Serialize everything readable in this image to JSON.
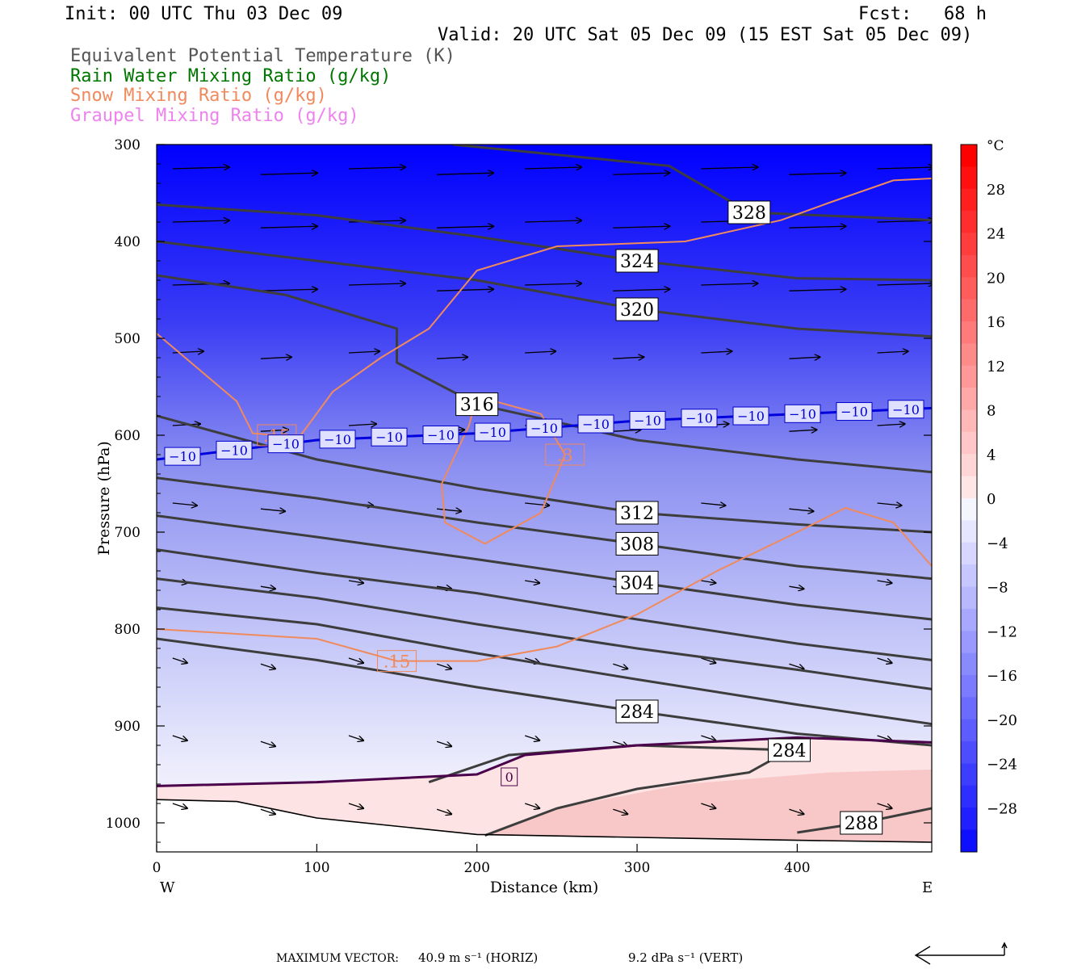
{
  "header": {
    "init": "Init: 00 UTC Thu 03 Dec 09",
    "fcst": "Fcst:   68 h",
    "valid": "Valid: 20 UTC Sat 05 Dec 09 (15 EST Sat 05 Dec 09)"
  },
  "legend": [
    {
      "text": "Equivalent Potential Temperature (K)",
      "color": "#555555"
    },
    {
      "text": "Rain Water Mixing Ratio (g/kg)",
      "color": "#007700"
    },
    {
      "text": "Snow Mixing Ratio (g/kg)",
      "color": "#f08a5d"
    },
    {
      "text": "Graupel Mixing Ratio (g/kg)",
      "color": "#ee82ee"
    }
  ],
  "chart_data": {
    "type": "cross-section",
    "xlabel": "Distance (km)",
    "ylabel": "Pressure (hPa)",
    "x_end_labels": [
      "W",
      "E"
    ],
    "xlim": [
      0,
      484
    ],
    "ylim": [
      300,
      1030
    ],
    "x_ticks": [
      0,
      100,
      200,
      300,
      400
    ],
    "y_ticks": [
      300,
      400,
      500,
      600,
      700,
      800,
      900,
      1000
    ],
    "colorbar": {
      "unit": "°C",
      "range": [
        -32,
        32
      ],
      "tick_labels": [
        "28",
        "24",
        "20",
        "16",
        "12",
        "8",
        "4",
        "0",
        "−4",
        "−8",
        "−12",
        "−16",
        "−20",
        "−24",
        "−28"
      ],
      "tick_values": [
        28,
        24,
        20,
        16,
        12,
        8,
        4,
        0,
        -4,
        -8,
        -12,
        -16,
        -20,
        -24,
        -28
      ]
    },
    "theta_e_contours": [
      {
        "label": "328",
        "points": [
          [
            185,
            300
          ],
          [
            320,
            322
          ],
          [
            370,
            370
          ],
          [
            484,
            378
          ]
        ]
      },
      {
        "label": "324",
        "points": [
          [
            0,
            362
          ],
          [
            100,
            373
          ],
          [
            200,
            395
          ],
          [
            300,
            420
          ],
          [
            400,
            438
          ],
          [
            484,
            440
          ]
        ]
      },
      {
        "label": "320",
        "points": [
          [
            0,
            400
          ],
          [
            100,
            420
          ],
          [
            200,
            440
          ],
          [
            300,
            470
          ],
          [
            400,
            490
          ],
          [
            484,
            498
          ]
        ]
      },
      {
        "label": "316",
        "points": [
          [
            0,
            435
          ],
          [
            80,
            455
          ],
          [
            150,
            490
          ],
          [
            150,
            525
          ],
          [
            200,
            568
          ],
          [
            300,
            605
          ],
          [
            400,
            625
          ],
          [
            484,
            638
          ]
        ]
      },
      {
        "label": "312",
        "points": [
          [
            0,
            580
          ],
          [
            100,
            625
          ],
          [
            200,
            655
          ],
          [
            300,
            680
          ],
          [
            400,
            692
          ],
          [
            484,
            700
          ]
        ]
      },
      {
        "label": "308",
        "points": [
          [
            0,
            644
          ],
          [
            100,
            665
          ],
          [
            200,
            690
          ],
          [
            300,
            712
          ],
          [
            400,
            735
          ],
          [
            484,
            748
          ]
        ]
      },
      {
        "label": "304",
        "points": [
          [
            0,
            683
          ],
          [
            100,
            705
          ],
          [
            200,
            728
          ],
          [
            300,
            752
          ],
          [
            400,
            775
          ],
          [
            484,
            790
          ]
        ]
      },
      {
        "label": "",
        "points": [
          [
            0,
            718
          ],
          [
            100,
            742
          ],
          [
            200,
            763
          ],
          [
            300,
            790
          ],
          [
            400,
            815
          ],
          [
            484,
            832
          ]
        ]
      },
      {
        "label": "",
        "points": [
          [
            0,
            748
          ],
          [
            100,
            768
          ],
          [
            200,
            795
          ],
          [
            300,
            820
          ],
          [
            400,
            842
          ],
          [
            484,
            862
          ]
        ]
      },
      {
        "label": "",
        "points": [
          [
            0,
            778
          ],
          [
            100,
            795
          ],
          [
            200,
            825
          ],
          [
            300,
            852
          ],
          [
            400,
            878
          ],
          [
            484,
            898
          ]
        ]
      },
      {
        "label": "284",
        "points": [
          [
            0,
            810
          ],
          [
            100,
            832
          ],
          [
            200,
            860
          ],
          [
            300,
            885
          ],
          [
            400,
            908
          ],
          [
            484,
            920
          ]
        ]
      },
      {
        "label": "284",
        "points": [
          [
            205,
            1013
          ],
          [
            250,
            985
          ],
          [
            300,
            965
          ],
          [
            370,
            948
          ],
          [
            395,
            925
          ],
          [
            300,
            920
          ],
          [
            220,
            930
          ],
          [
            170,
            958
          ]
        ]
      },
      {
        "label": "288",
        "points": [
          [
            400,
            1010
          ],
          [
            440,
            1000
          ],
          [
            484,
            985
          ]
        ]
      }
    ],
    "snow_0_15_contours": [
      {
        "label": ".15",
        "points": [
          [
            0,
            495
          ],
          [
            50,
            565
          ],
          [
            60,
            598
          ],
          [
            75,
            600
          ],
          [
            90,
            600
          ],
          [
            110,
            555
          ],
          [
            140,
            520
          ],
          [
            170,
            490
          ],
          [
            200,
            430
          ],
          [
            250,
            405
          ],
          [
            330,
            400
          ],
          [
            390,
            378
          ],
          [
            420,
            360
          ],
          [
            460,
            337
          ],
          [
            484,
            335
          ]
        ]
      },
      {
        "label": ".15",
        "points": [
          [
            0,
            800
          ],
          [
            50,
            805
          ],
          [
            100,
            810
          ],
          [
            150,
            833
          ],
          [
            200,
            833
          ],
          [
            250,
            818
          ],
          [
            300,
            785
          ],
          [
            350,
            740
          ],
          [
            400,
            700
          ],
          [
            430,
            675
          ],
          [
            460,
            690
          ],
          [
            484,
            735
          ]
        ]
      },
      {
        "label": ".3",
        "points": [
          [
            200,
            560
          ],
          [
            240,
            578
          ],
          [
            255,
            620
          ],
          [
            240,
            680
          ],
          [
            205,
            712
          ],
          [
            180,
            690
          ],
          [
            178,
            650
          ],
          [
            195,
            590
          ],
          [
            200,
            560
          ]
        ]
      }
    ],
    "isotherm_minus10": {
      "label_color": "#0000cc",
      "labels": [
        "−10",
        "−10",
        "−10",
        "−10",
        "−10",
        "−10",
        "−10",
        "−10",
        "−10",
        "−10",
        "−10",
        "−10",
        "−10",
        "−10",
        "−10"
      ],
      "points": [
        [
          0,
          625
        ],
        [
          100,
          605
        ],
        [
          200,
          598
        ],
        [
          300,
          585
        ],
        [
          400,
          578
        ],
        [
          484,
          572
        ]
      ]
    },
    "freezing_line": {
      "label": "0",
      "points": [
        [
          0,
          962
        ],
        [
          100,
          958
        ],
        [
          200,
          950
        ],
        [
          230,
          930
        ],
        [
          300,
          920
        ],
        [
          400,
          912
        ],
        [
          484,
          917
        ]
      ]
    },
    "ground": {
      "points": [
        [
          0,
          976
        ],
        [
          50,
          978
        ],
        [
          100,
          995
        ],
        [
          200,
          1012
        ],
        [
          300,
          1015
        ],
        [
          400,
          1018
        ],
        [
          484,
          1020
        ]
      ]
    },
    "wind_vectors_note": "horizontal wind arrows, westerly flow",
    "footer": {
      "max_vector_label": "MAXIMUM VECTOR:",
      "horiz": "40.9 m s⁻¹ (HORIZ)",
      "vert": "9.2 dPa s⁻¹ (VERT)"
    }
  }
}
